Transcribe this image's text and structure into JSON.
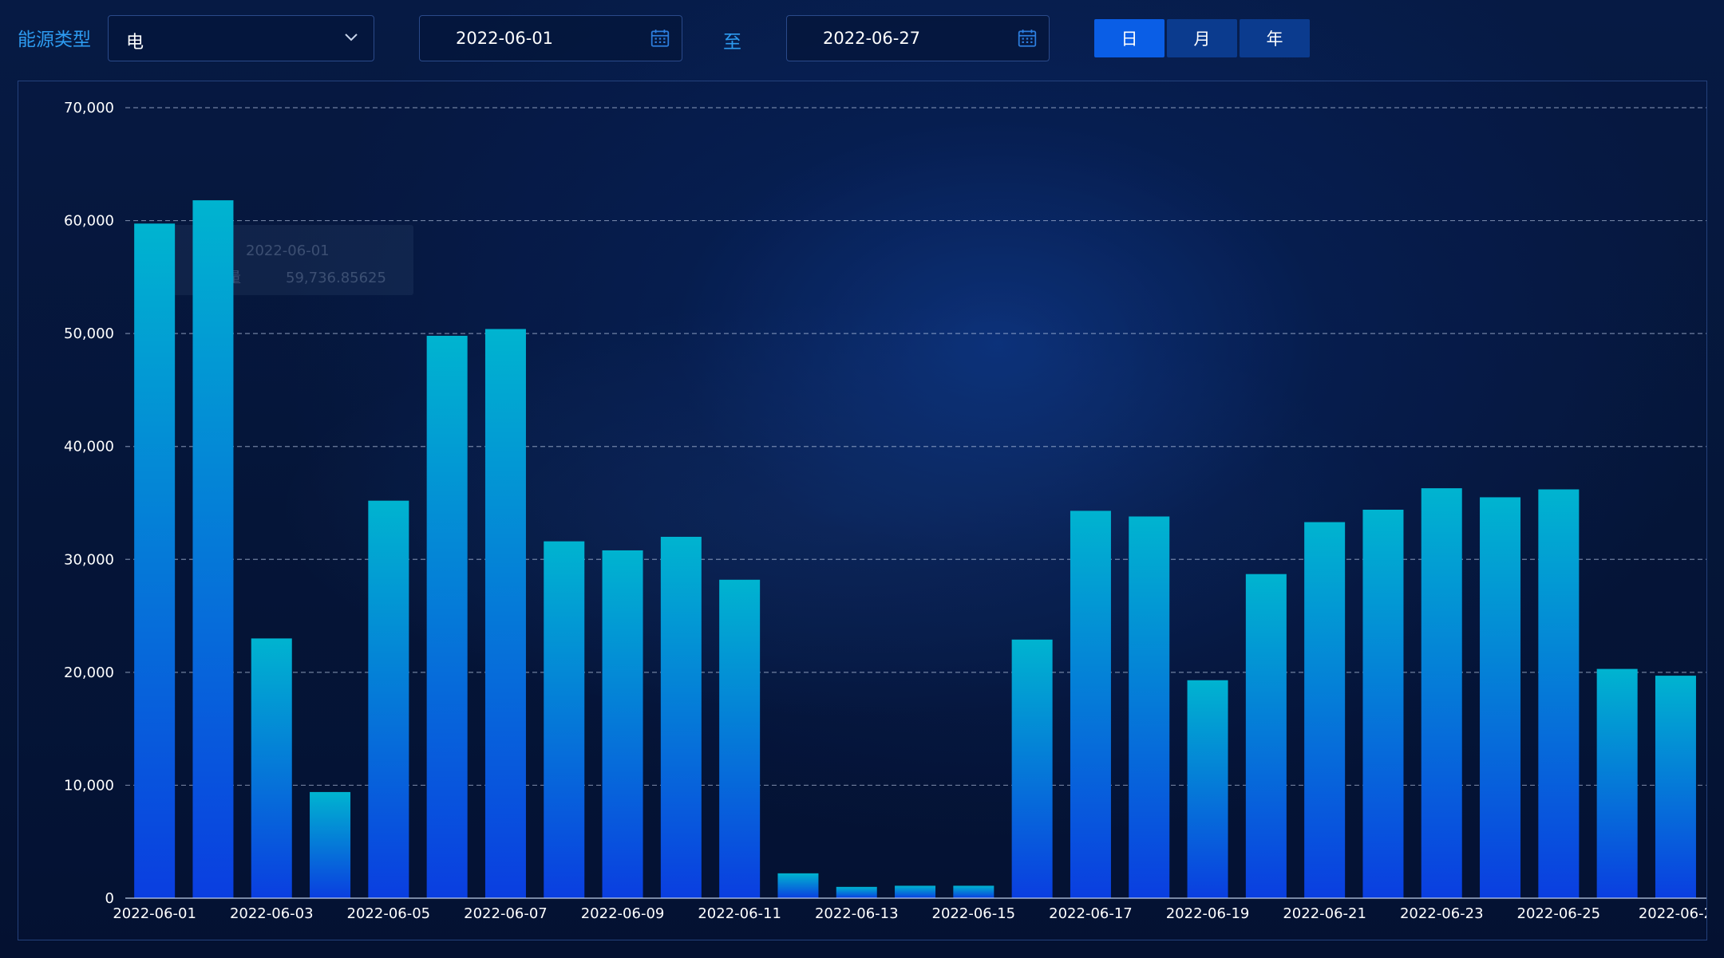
{
  "filters": {
    "energy_type_label": "能源类型",
    "energy_type_value": "电",
    "start_date": "2022-06-01",
    "to_label": "至",
    "end_date": "2022-06-27",
    "granularity": [
      {
        "label": "日",
        "active": true
      },
      {
        "label": "月",
        "active": false
      },
      {
        "label": "年",
        "active": false
      }
    ]
  },
  "icons": {
    "dropdown": "chevron-down-icon",
    "date": "calendar-icon"
  },
  "colors": {
    "bar_top": "#00b4d0",
    "bar_bottom": "#0a3ee0",
    "label_blue": "#2d9bf0",
    "active_button": "#0a5ee6",
    "inactive_button": "#0b3b8e"
  },
  "chart_data": {
    "type": "bar",
    "categories": [
      "2022-06-01",
      "2022-06-02",
      "2022-06-03",
      "2022-06-04",
      "2022-06-05",
      "2022-06-06",
      "2022-06-07",
      "2022-06-08",
      "2022-06-09",
      "2022-06-10",
      "2022-06-11",
      "2022-06-12",
      "2022-06-13",
      "2022-06-14",
      "2022-06-15",
      "2022-06-16",
      "2022-06-17",
      "2022-06-18",
      "2022-06-19",
      "2022-06-20",
      "2022-06-21",
      "2022-06-22",
      "2022-06-23",
      "2022-06-24",
      "2022-06-25",
      "2022-06-26",
      "2022-06-27"
    ],
    "x_tick_labels": [
      "2022-06-01",
      "2022-06-03",
      "2022-06-05",
      "2022-06-07",
      "2022-06-09",
      "2022-06-11",
      "2022-06-13",
      "2022-06-15",
      "2022-06-17",
      "2022-06-19",
      "2022-06-21",
      "2022-06-23",
      "2022-06-25",
      "2022-06-2"
    ],
    "values": [
      59736.85625,
      61800,
      23000,
      9400,
      35200,
      49800,
      50400,
      31600,
      30800,
      32000,
      28200,
      2200,
      1000,
      1100,
      1100,
      22900,
      34300,
      33800,
      19300,
      28700,
      33300,
      34400,
      36300,
      35500,
      36200,
      20300,
      19700
    ],
    "y_ticks": [
      "0",
      "10,000",
      "20,000",
      "30,000",
      "40,000",
      "50,000",
      "60,000",
      "70,000"
    ],
    "ylim": [
      0,
      70000
    ],
    "grid": "horizontal dashed",
    "tooltip": {
      "date": "2022-06-01",
      "label": "用电量",
      "value": "59,736.85625"
    }
  }
}
